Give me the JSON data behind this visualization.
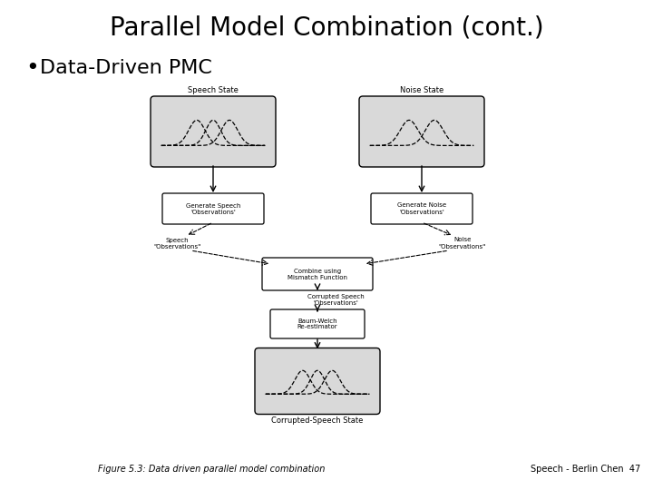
{
  "title": "Parallel Model Combination (cont.)",
  "bullet": "Data-Driven PMC",
  "bg_color": "#ffffff",
  "title_fontsize": 20,
  "bullet_fontsize": 16,
  "footer_left": "Figure 5.3: Data driven parallel model combination",
  "footer_right": "Speech - Berlin Chen  47",
  "footer_fontsize": 7,
  "diagram": {
    "speech_state_label": "Speech State",
    "noise_state_label": "Noise State",
    "gen_speech_label": "Generate Speech\n'Observations'",
    "gen_noise_label": "Generate Noise\n'Observations'",
    "speech_obs_label": "Speech\n\"Observations\"",
    "noise_obs_label": "Noise\n\"Observations\"",
    "combine_label": "Combine using\nMismatch Function",
    "corrupted_label": "Corrupted Speech\n'Observations'",
    "baum_welch_label": "Baum-Welch\nRe-estimator",
    "output_label": "Corrupted-Speech State"
  }
}
